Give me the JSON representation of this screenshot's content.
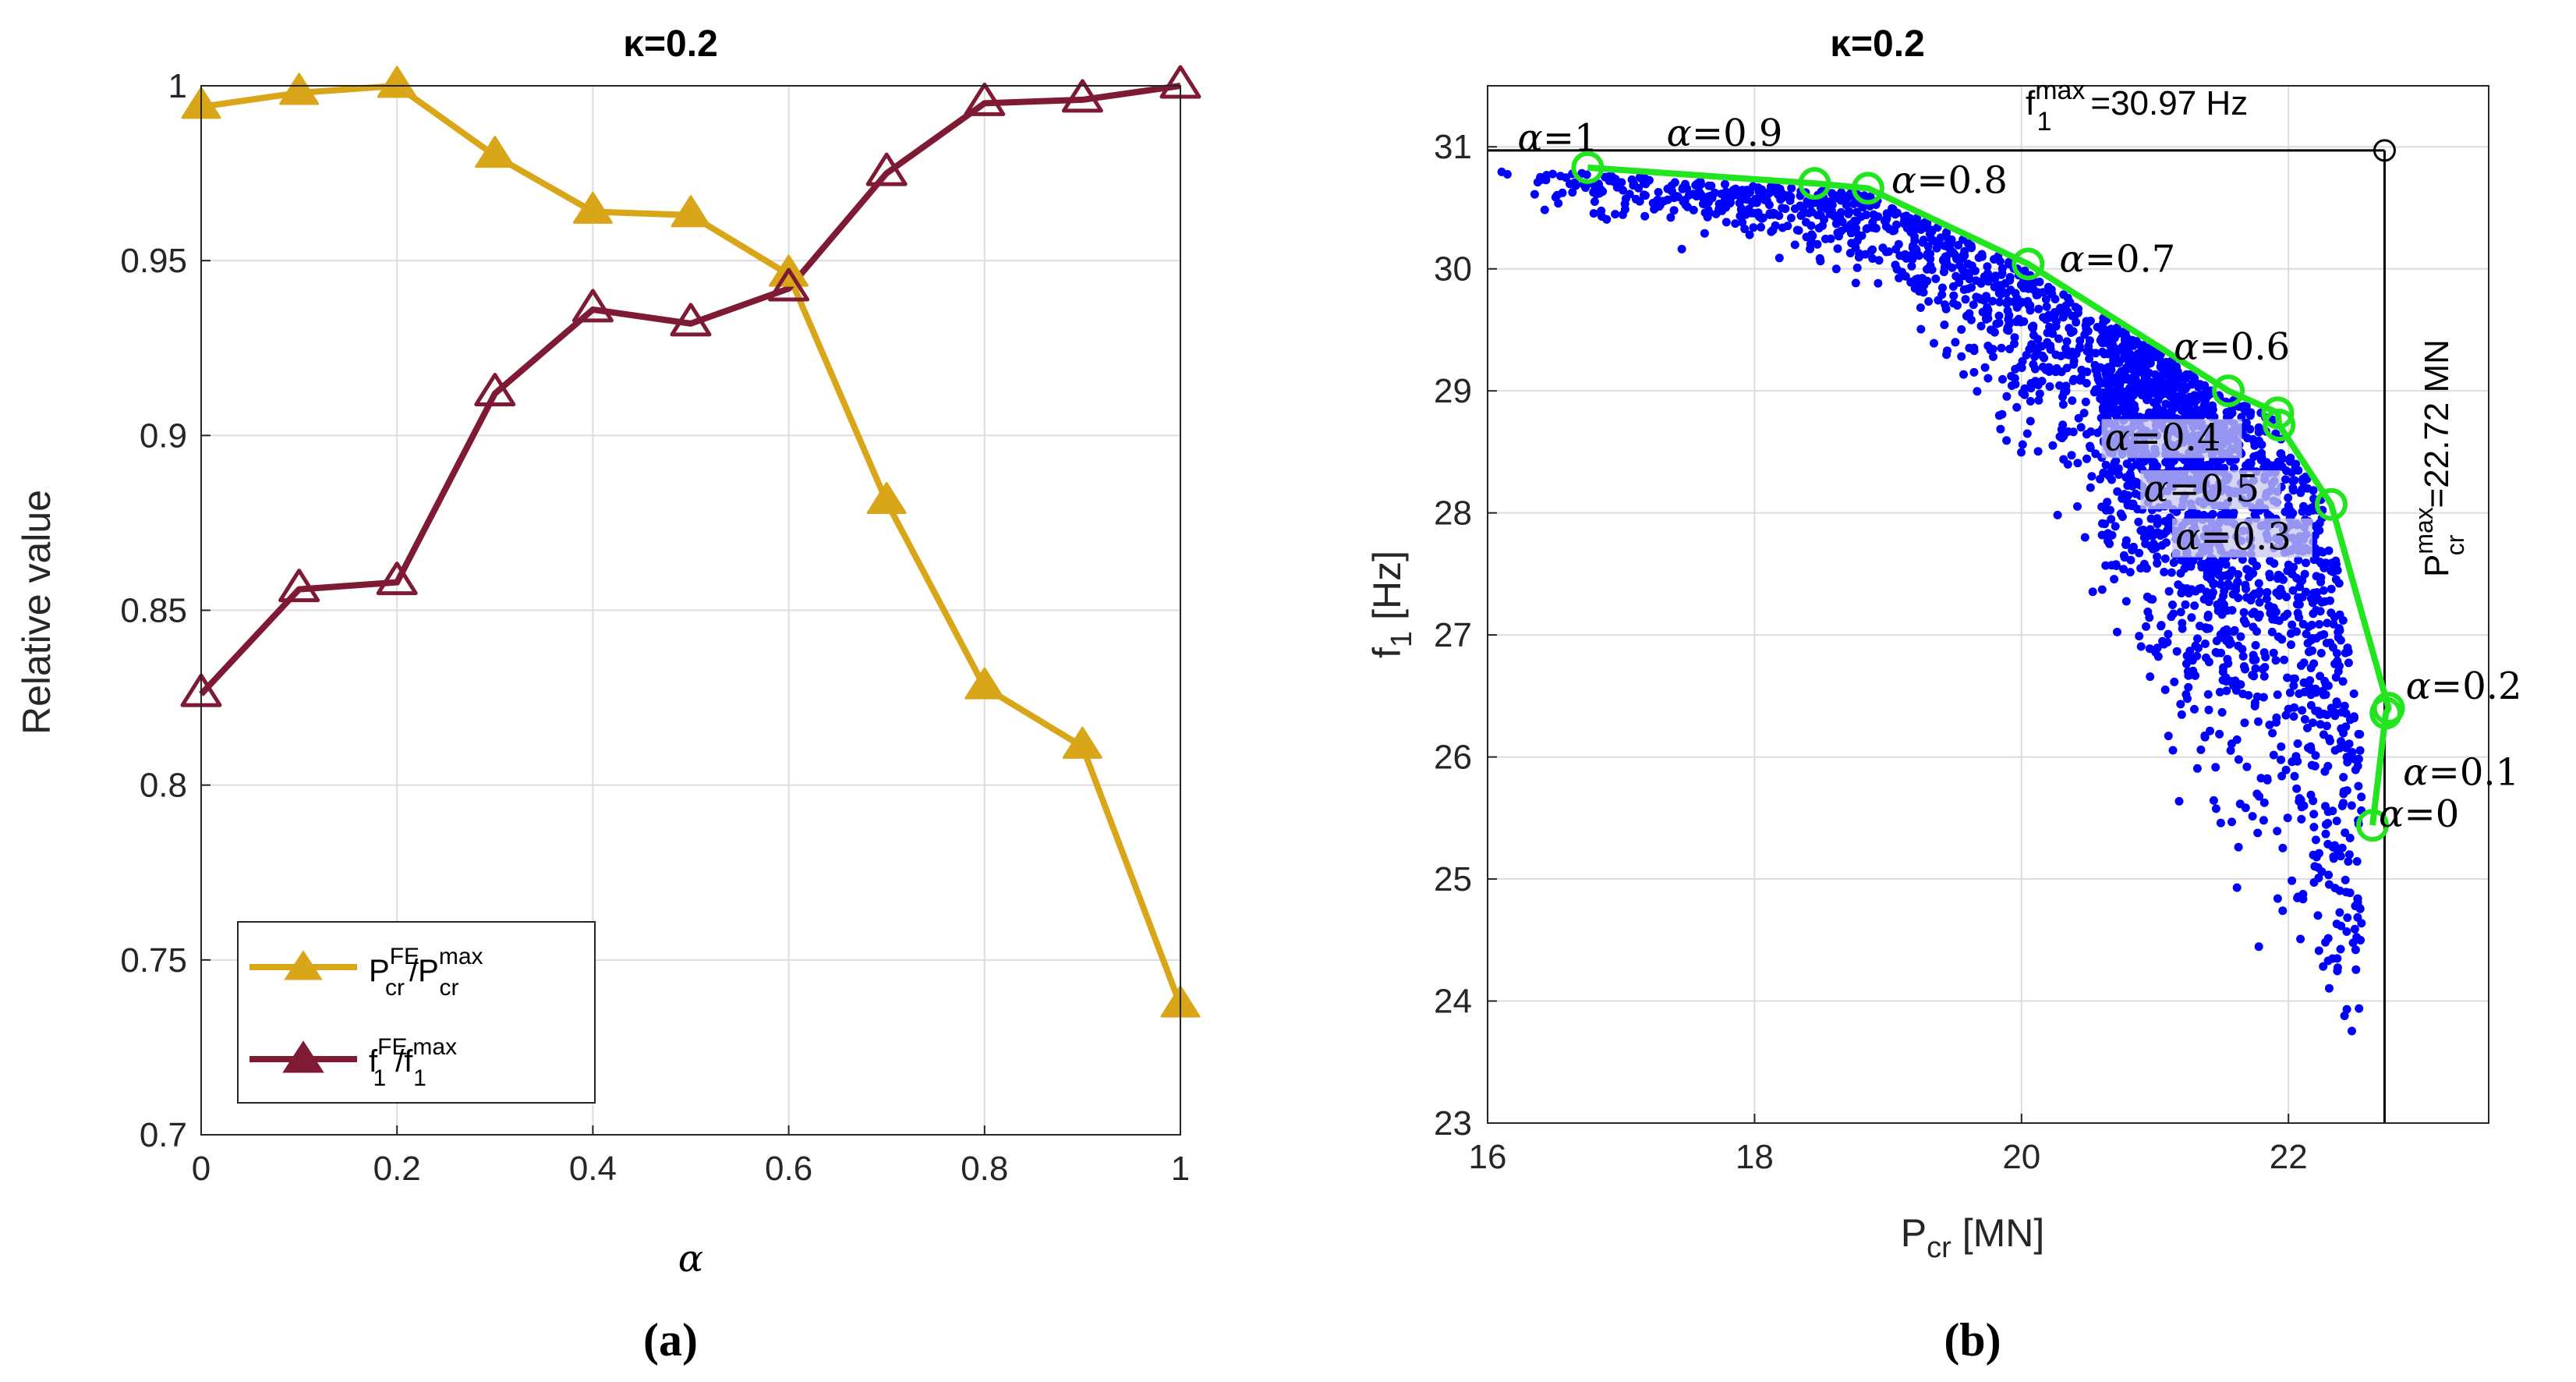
{
  "chart_data": [
    {
      "type": "line",
      "panel": "a",
      "title": "κ=0.2",
      "xlabel": "α",
      "ylabel": "Relative value",
      "xlim": [
        0,
        1
      ],
      "ylim": [
        0.7,
        1.0
      ],
      "xticks": [
        "0",
        "0.2",
        "0.4",
        "0.6",
        "0.8",
        "1"
      ],
      "yticks": [
        "0.7",
        "0.75",
        "0.8",
        "0.85",
        "0.9",
        "0.95",
        "1"
      ],
      "grid": true,
      "legend_position": "bottom-left",
      "x": [
        0,
        0.1,
        0.2,
        0.3,
        0.4,
        0.5,
        0.6,
        0.7,
        0.8,
        0.9,
        1.0
      ],
      "series": [
        {
          "name": "P_cr^FE/P_cr^max",
          "legend_base1": "P",
          "legend_sup1": "FE",
          "legend_sub1": "cr",
          "legend_slash": "/",
          "legend_base2": "P",
          "legend_sup2": "max",
          "legend_sub2": "cr",
          "color": "#d9a519",
          "marker": "filled-triangle",
          "values": [
            0.994,
            0.998,
            1.0,
            0.98,
            0.964,
            0.963,
            0.946,
            0.881,
            0.828,
            0.811,
            0.737
          ]
        },
        {
          "name": "f_1^FE/f_1^max",
          "legend_base1": "f",
          "legend_sup1": "FE",
          "legend_sub1": "1",
          "legend_slash": "/",
          "legend_base2": "f",
          "legend_sup2": "max",
          "legend_sub2": "1",
          "color": "#7e1a33",
          "marker": "open-triangle",
          "values": [
            0.826,
            0.856,
            0.858,
            0.912,
            0.936,
            0.932,
            0.942,
            0.975,
            0.995,
            0.996,
            1.0
          ]
        }
      ],
      "caption": "(a)"
    },
    {
      "type": "scatter",
      "panel": "b",
      "title": "κ=0.2",
      "xlabel_base": "P",
      "xlabel_sub": "cr",
      "xlabel_unit": "[MN]",
      "ylabel_base": "f",
      "ylabel_sub": "1",
      "ylabel_unit": "[Hz]",
      "xlim": [
        16,
        23.5
      ],
      "ylim": [
        23,
        31.5
      ],
      "xticks": [
        "16",
        "18",
        "20",
        "22"
      ],
      "yticks": [
        "23",
        "24",
        "25",
        "26",
        "27",
        "28",
        "29",
        "30",
        "31"
      ],
      "grid": true,
      "scatter_color": "#0000ff",
      "scatter_count": 2600,
      "front": {
        "color": "#22e41f",
        "points": [
          {
            "P": 16.75,
            "f": 30.83,
            "label": "α=1"
          },
          {
            "P": 18.45,
            "f": 30.7,
            "label": "α=0.9"
          },
          {
            "P": 18.85,
            "f": 30.66,
            "label": "α=0.8"
          },
          {
            "P": 20.05,
            "f": 30.04,
            "label": "α=0.7"
          },
          {
            "P": 21.55,
            "f": 29.0,
            "label": "α=0.6"
          },
          {
            "P": 21.92,
            "f": 28.82,
            "label": "α=0.4"
          },
          {
            "P": 21.93,
            "f": 28.72,
            "label": "α=0.5"
          },
          {
            "P": 22.32,
            "f": 28.07,
            "label": "α=0.3"
          },
          {
            "P": 22.75,
            "f": 26.4,
            "label": "α=0.2"
          },
          {
            "P": 22.73,
            "f": 26.36,
            "label": "α=0.1"
          },
          {
            "P": 22.63,
            "f": 25.44,
            "label": "α=0"
          }
        ]
      },
      "ideal_point": {
        "P": 22.72,
        "f": 30.97
      },
      "f_max_label": {
        "base": "f",
        "sub": "1",
        "sup": "max",
        "value": "=30.97 Hz"
      },
      "p_max_label": {
        "base": "P",
        "sub": "cr",
        "sup": "max",
        "value": "=22.72 MN"
      },
      "caption": "(b)"
    }
  ]
}
